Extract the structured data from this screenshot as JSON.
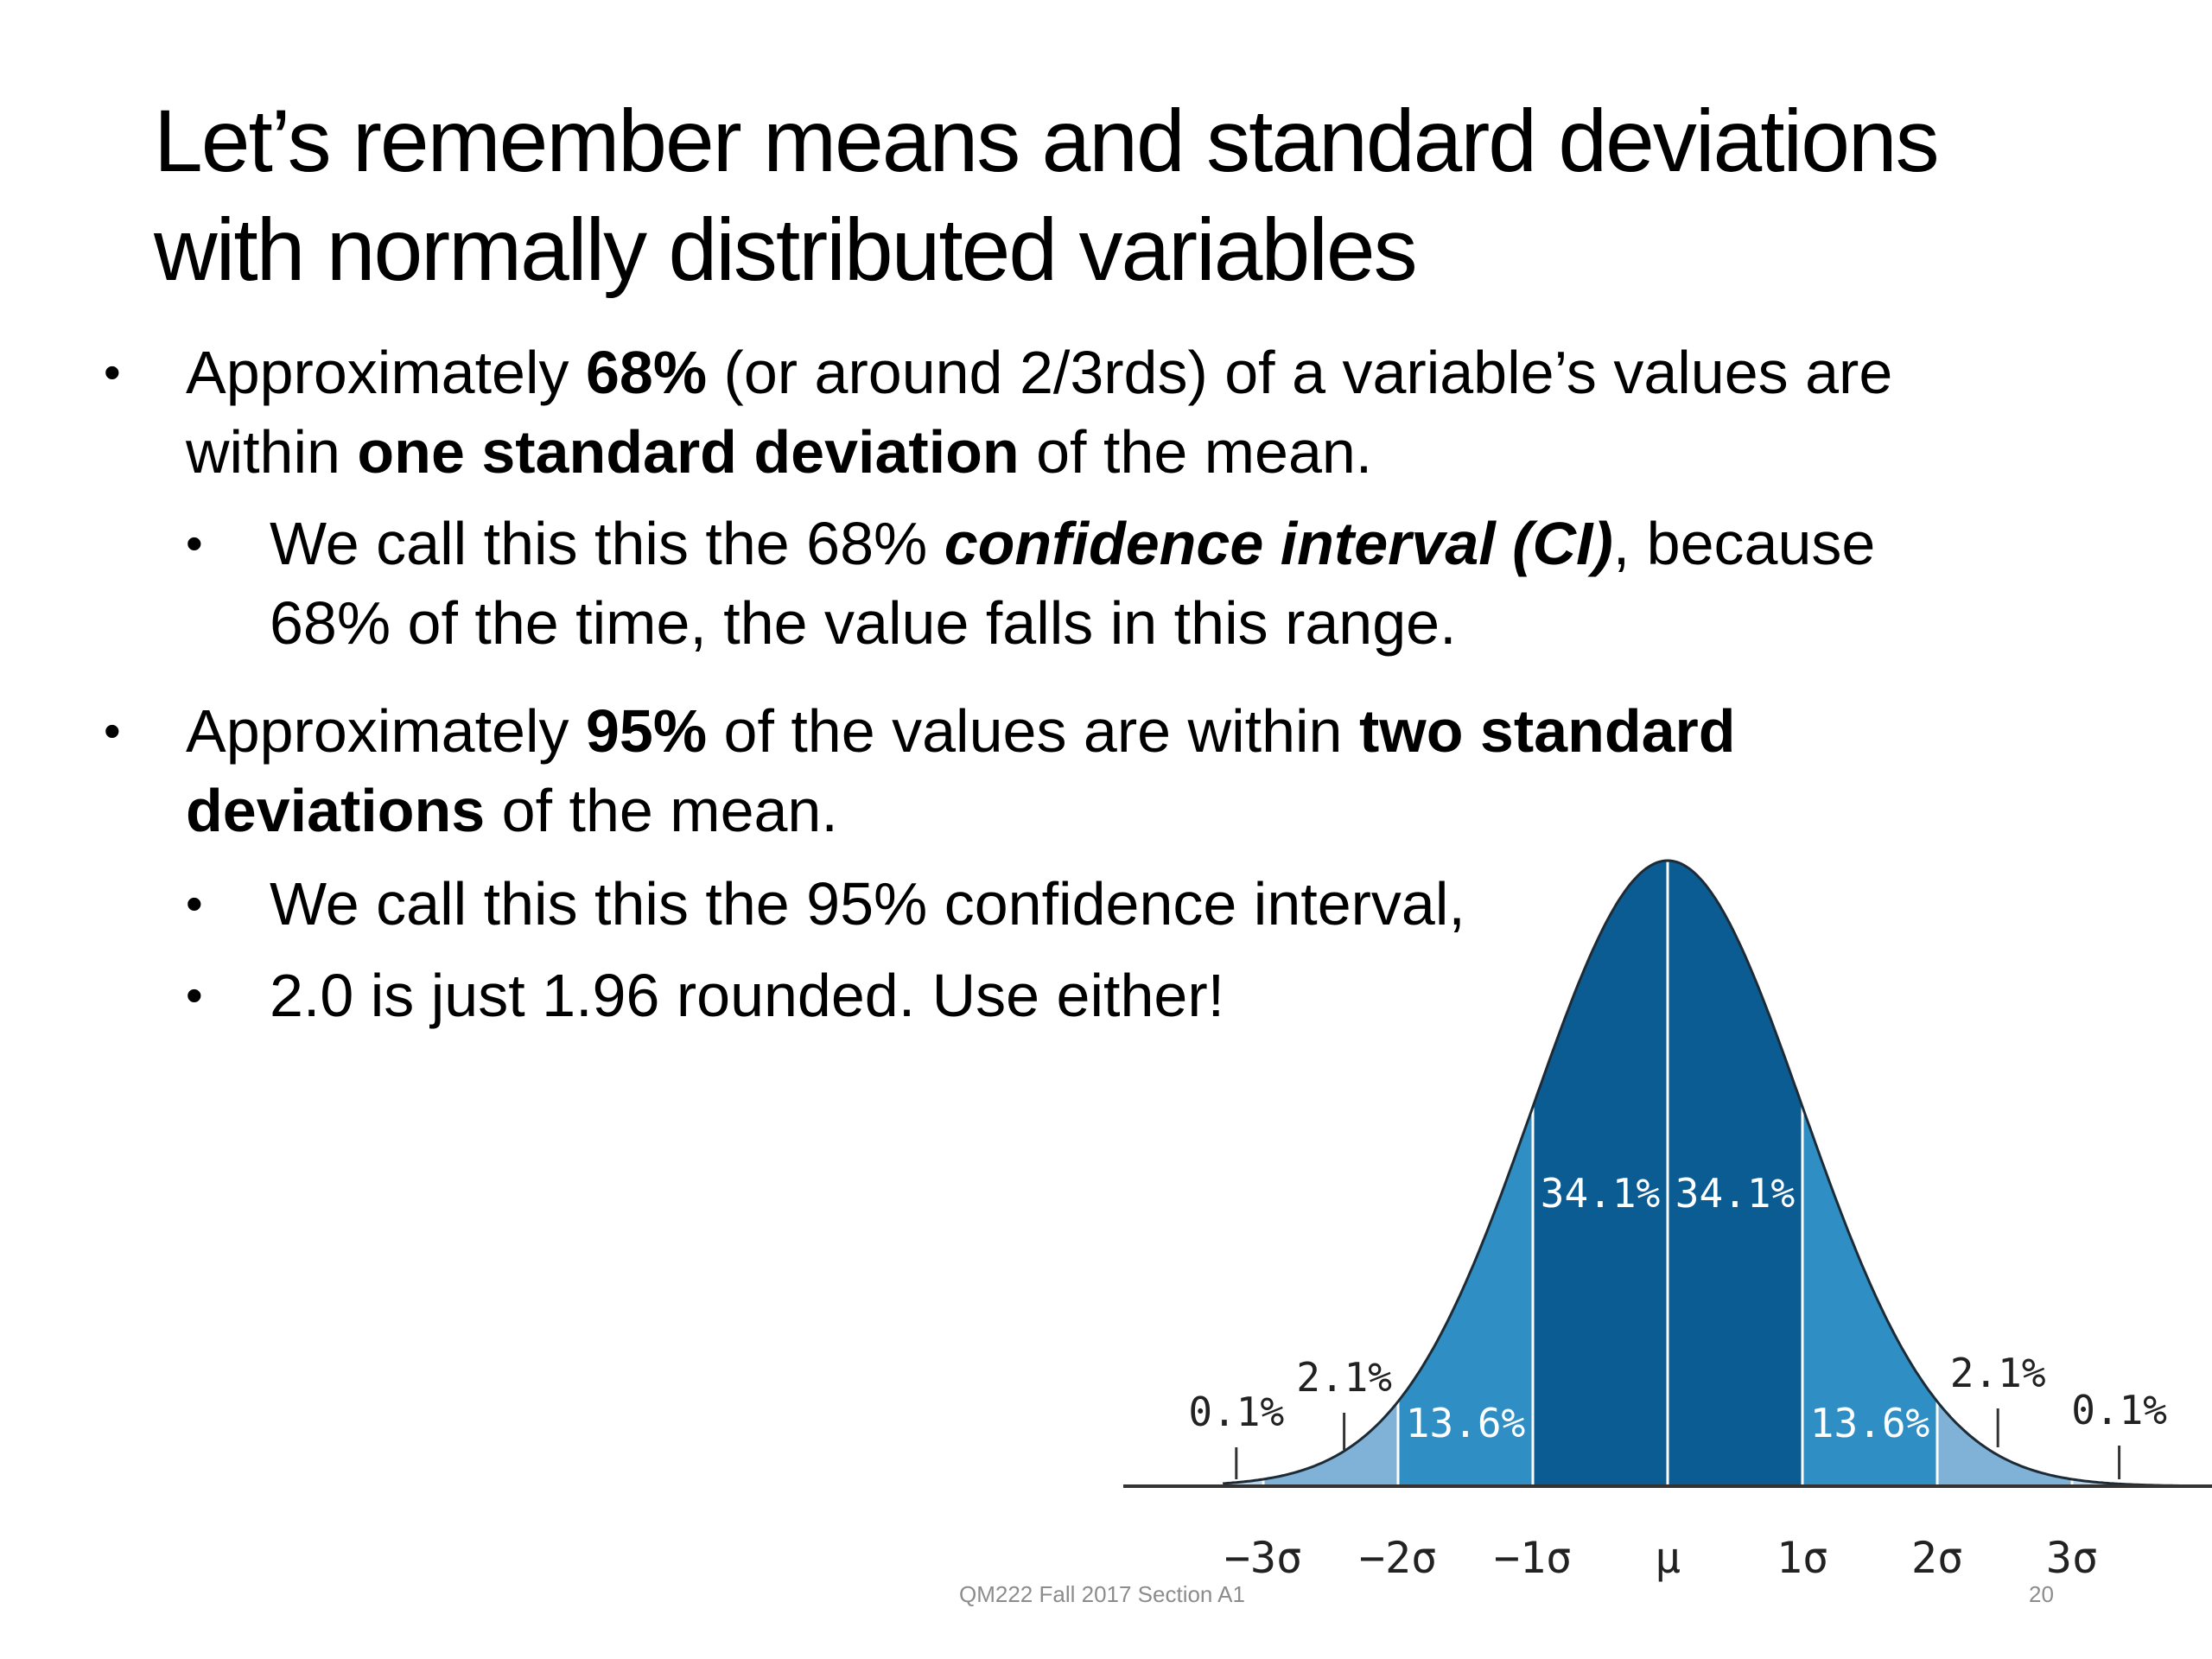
{
  "slide": {
    "title_line1": "Let’s remember means and standard deviations",
    "title_line2": "with normally distributed variables"
  },
  "bullets": {
    "b1": {
      "t1": "Approximately ",
      "t2": "68%",
      "t3": " (or around 2/3rds) of a variable’s values are within ",
      "t4": "one standard deviation",
      "t5": " of the mean."
    },
    "b1a": {
      "t1": "We call this this the 68% ",
      "t2": "confidence interval (CI)",
      "t3": ", because 68% of the time, the value falls in this range."
    },
    "b2": {
      "t1": "Approximately ",
      "t2": "95%",
      "t3": " of the values are within ",
      "t4": "two standard deviations",
      "t5": " of the mean."
    },
    "b2a": {
      "t1": "We call this this the 95% confidence interval,"
    },
    "b2b": {
      "t1": "2.0 is just 1.96 rounded.  Use either!"
    }
  },
  "footer": {
    "course": "QM222 Fall 2017 Section A1",
    "page": "20"
  },
  "colors": {
    "center_band": "#0c5c94",
    "middle_band": "#2f8ec4",
    "outer_band": "#7fb2d6",
    "tail_band": "#b8d4ea",
    "outline": "#1d2b36"
  },
  "chart_data": {
    "type": "area",
    "title": "",
    "xlabel": "",
    "ylabel": "",
    "distribution": "normal",
    "x_ticks": [
      "−3σ",
      "−2σ",
      "−1σ",
      "μ",
      "1σ",
      "2σ",
      "3σ"
    ],
    "regions": [
      {
        "from": -4,
        "to": -3,
        "value": 0.1,
        "label": "0.1%"
      },
      {
        "from": -3,
        "to": -2,
        "value": 2.1,
        "label": "2.1%"
      },
      {
        "from": -2,
        "to": -1,
        "value": 13.6,
        "label": "13.6%"
      },
      {
        "from": -1,
        "to": 0,
        "value": 34.1,
        "label": "34.1%"
      },
      {
        "from": 0,
        "to": 1,
        "value": 34.1,
        "label": "34.1%"
      },
      {
        "from": 1,
        "to": 2,
        "value": 13.6,
        "label": "13.6%"
      },
      {
        "from": 2,
        "to": 3,
        "value": 2.1,
        "label": "2.1%"
      },
      {
        "from": 3,
        "to": 4,
        "value": 0.1,
        "label": "0.1%"
      }
    ],
    "xlim": [
      -3.3,
      4.0
    ]
  }
}
